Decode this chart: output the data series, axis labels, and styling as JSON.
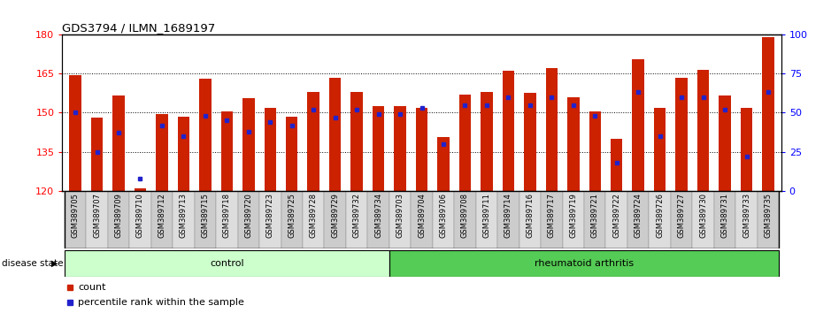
{
  "title": "GDS3794 / ILMN_1689197",
  "samples": [
    "GSM389705",
    "GSM389707",
    "GSM389709",
    "GSM389710",
    "GSM389712",
    "GSM389713",
    "GSM389715",
    "GSM389718",
    "GSM389720",
    "GSM389723",
    "GSM389725",
    "GSM389728",
    "GSM389729",
    "GSM389732",
    "GSM389734",
    "GSM389703",
    "GSM389704",
    "GSM389706",
    "GSM389708",
    "GSM389711",
    "GSM389714",
    "GSM389716",
    "GSM389717",
    "GSM389719",
    "GSM389721",
    "GSM389722",
    "GSM389724",
    "GSM389726",
    "GSM389727",
    "GSM389730",
    "GSM389731",
    "GSM389733",
    "GSM389735"
  ],
  "counts": [
    164.5,
    148.0,
    156.5,
    121.0,
    149.5,
    148.5,
    163.0,
    150.5,
    155.5,
    152.0,
    148.5,
    158.0,
    163.5,
    158.0,
    152.5,
    152.5,
    152.0,
    140.5,
    157.0,
    158.0,
    166.0,
    157.5,
    167.0,
    156.0,
    150.5,
    140.0,
    170.5,
    152.0,
    163.5,
    166.5,
    156.5,
    152.0,
    179.0
  ],
  "percentile_ranks": [
    50,
    25,
    37,
    8,
    42,
    35,
    48,
    45,
    38,
    44,
    42,
    52,
    47,
    52,
    49,
    49,
    53,
    30,
    55,
    55,
    60,
    55,
    60,
    55,
    48,
    18,
    63,
    35,
    60,
    60,
    52,
    22,
    63
  ],
  "n_control": 15,
  "n_total": 33,
  "ylim_left": [
    120,
    180
  ],
  "ylim_right": [
    0,
    100
  ],
  "yticks_left": [
    120,
    135,
    150,
    165,
    180
  ],
  "yticks_right": [
    0,
    25,
    50,
    75,
    100
  ],
  "bar_color": "#CC2200",
  "marker_color": "#2222CC",
  "control_color": "#CCFFCC",
  "ra_color": "#55CC55",
  "bg_color": "#FFFFFF",
  "cell_color_even": "#CCCCCC",
  "cell_color_odd": "#DDDDDD"
}
